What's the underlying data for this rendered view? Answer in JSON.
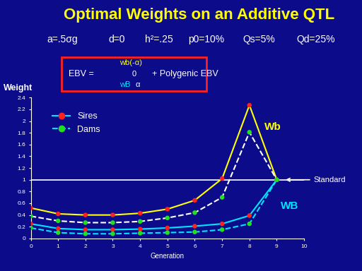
{
  "chart_data": {
    "type": "line",
    "title": "Optimal Weights on an Additive QTL",
    "subtitle": [
      "a=.5σg",
      "d=0",
      "h²=.25",
      "p0=10%",
      "Qs=5%",
      "Qd=25%"
    ],
    "formula": {
      "lhs": "EBV =",
      "top": "wb(-α)",
      "middle": "0",
      "bottom_weight": "wB",
      "bottom_term": "α",
      "rest": "+ Polygenic EBV"
    },
    "x_label": "Generation",
    "y_label": "Weight",
    "x": [
      0,
      1,
      2,
      3,
      4,
      5,
      6,
      7,
      8,
      9
    ],
    "series": [
      {
        "name": "Sires",
        "label": "WB",
        "color": "#00e5ff",
        "line_style": "solid",
        "marker": "o",
        "colors": [
          "#ff2020",
          "#ff2020",
          "#ff2020",
          "#ff2020",
          "#ff2020",
          "#ff2020",
          "#ff2020",
          "#ff2020",
          "#ff2020",
          "#ff2020"
        ],
        "values": [
          0.25,
          0.17,
          0.15,
          0.15,
          0.16,
          0.18,
          0.21,
          0.25,
          0.39,
          1.0
        ]
      },
      {
        "name": "Dams",
        "color": "#00e5ff",
        "line_style": "dashed",
        "marker": "o",
        "colors": [
          "#20e020",
          "#20e020",
          "#20e020",
          "#20e020",
          "#20e020",
          "#20e020",
          "#20e020",
          "#20e020",
          "#20e020",
          "#20e020"
        ],
        "values": [
          0.18,
          0.1,
          0.08,
          0.08,
          0.09,
          0.1,
          0.11,
          0.15,
          0.25,
          1.0
        ]
      },
      {
        "name": "Sires",
        "label": "Wb",
        "color": "#ffff00",
        "line_style": "solid",
        "marker": "o",
        "colors": [
          "#ff2020",
          "#ff2020",
          "#ff2020",
          "#ff2020",
          "#ff2020",
          "#ff2020",
          "#ff2020",
          "#ff2020",
          "#ff2020",
          "#ff2020"
        ],
        "values": [
          0.52,
          0.42,
          0.4,
          0.4,
          0.43,
          0.5,
          0.65,
          1.02,
          2.27,
          1.0
        ]
      },
      {
        "name": "Dams",
        "color": "#ffffff",
        "line_style": "dashed",
        "marker": "o",
        "colors": [
          "#20e020",
          "#20e020",
          "#20e020",
          "#20e020",
          "#20e020",
          "#20e020",
          "#20e020",
          "#20e020",
          "#20e020",
          "#20e020"
        ],
        "values": [
          0.38,
          0.3,
          0.27,
          0.27,
          0.29,
          0.35,
          0.44,
          0.7,
          1.81,
          1.0
        ]
      }
    ],
    "reference": {
      "value": 1,
      "label": "Standard"
    },
    "xlim": [
      0,
      10
    ],
    "xticks": [
      0,
      1,
      2,
      3,
      4,
      5,
      6,
      7,
      8,
      9,
      10
    ],
    "ylim": [
      0,
      2.4
    ],
    "yticks": [
      0,
      0.2,
      0.4,
      0.6,
      0.8,
      1,
      1.2,
      1.4,
      1.6,
      1.8,
      2,
      2.2,
      2.4
    ],
    "legend": "upper left",
    "grid": false
  }
}
